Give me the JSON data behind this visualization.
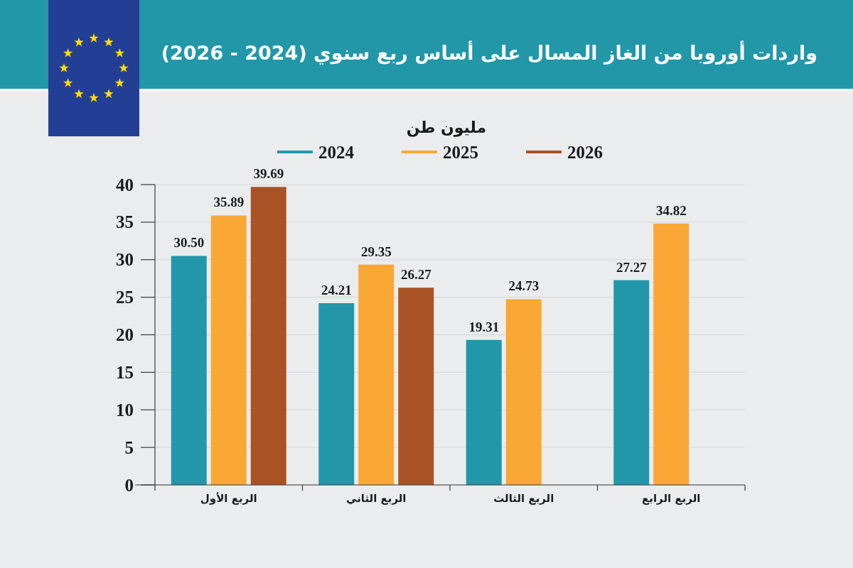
{
  "chart_data": {
    "type": "bar",
    "title": "واردات أوروبا من الغاز المسال على أساس ربع سنوي (2024 - 2026)",
    "ylabel": "مليون طن",
    "categories": [
      "الربع الأول",
      "الربع الثاني",
      "الربع الثالث",
      "الربع الرابع"
    ],
    "series": [
      {
        "name": "2024",
        "color": "#2197a9",
        "values": [
          30.5,
          24.21,
          19.31,
          27.27
        ],
        "value_labels": [
          "30.50",
          "24.21",
          "19.31",
          "27.27"
        ]
      },
      {
        "name": "2025",
        "color": "#f9a835",
        "values": [
          35.89,
          29.35,
          24.73,
          34.82
        ],
        "value_labels": [
          "35.89",
          "29.35",
          "24.73",
          "34.82"
        ]
      },
      {
        "name": "2026",
        "color": "#a85226",
        "values": [
          39.69,
          26.27,
          null,
          null
        ],
        "value_labels": [
          "39.69",
          "26.27",
          null,
          null
        ]
      }
    ],
    "ylim": [
      0,
      40
    ],
    "yticks": [
      0,
      5,
      10,
      15,
      20,
      25,
      30,
      35,
      40
    ],
    "grid": "y",
    "legend": "top"
  }
}
